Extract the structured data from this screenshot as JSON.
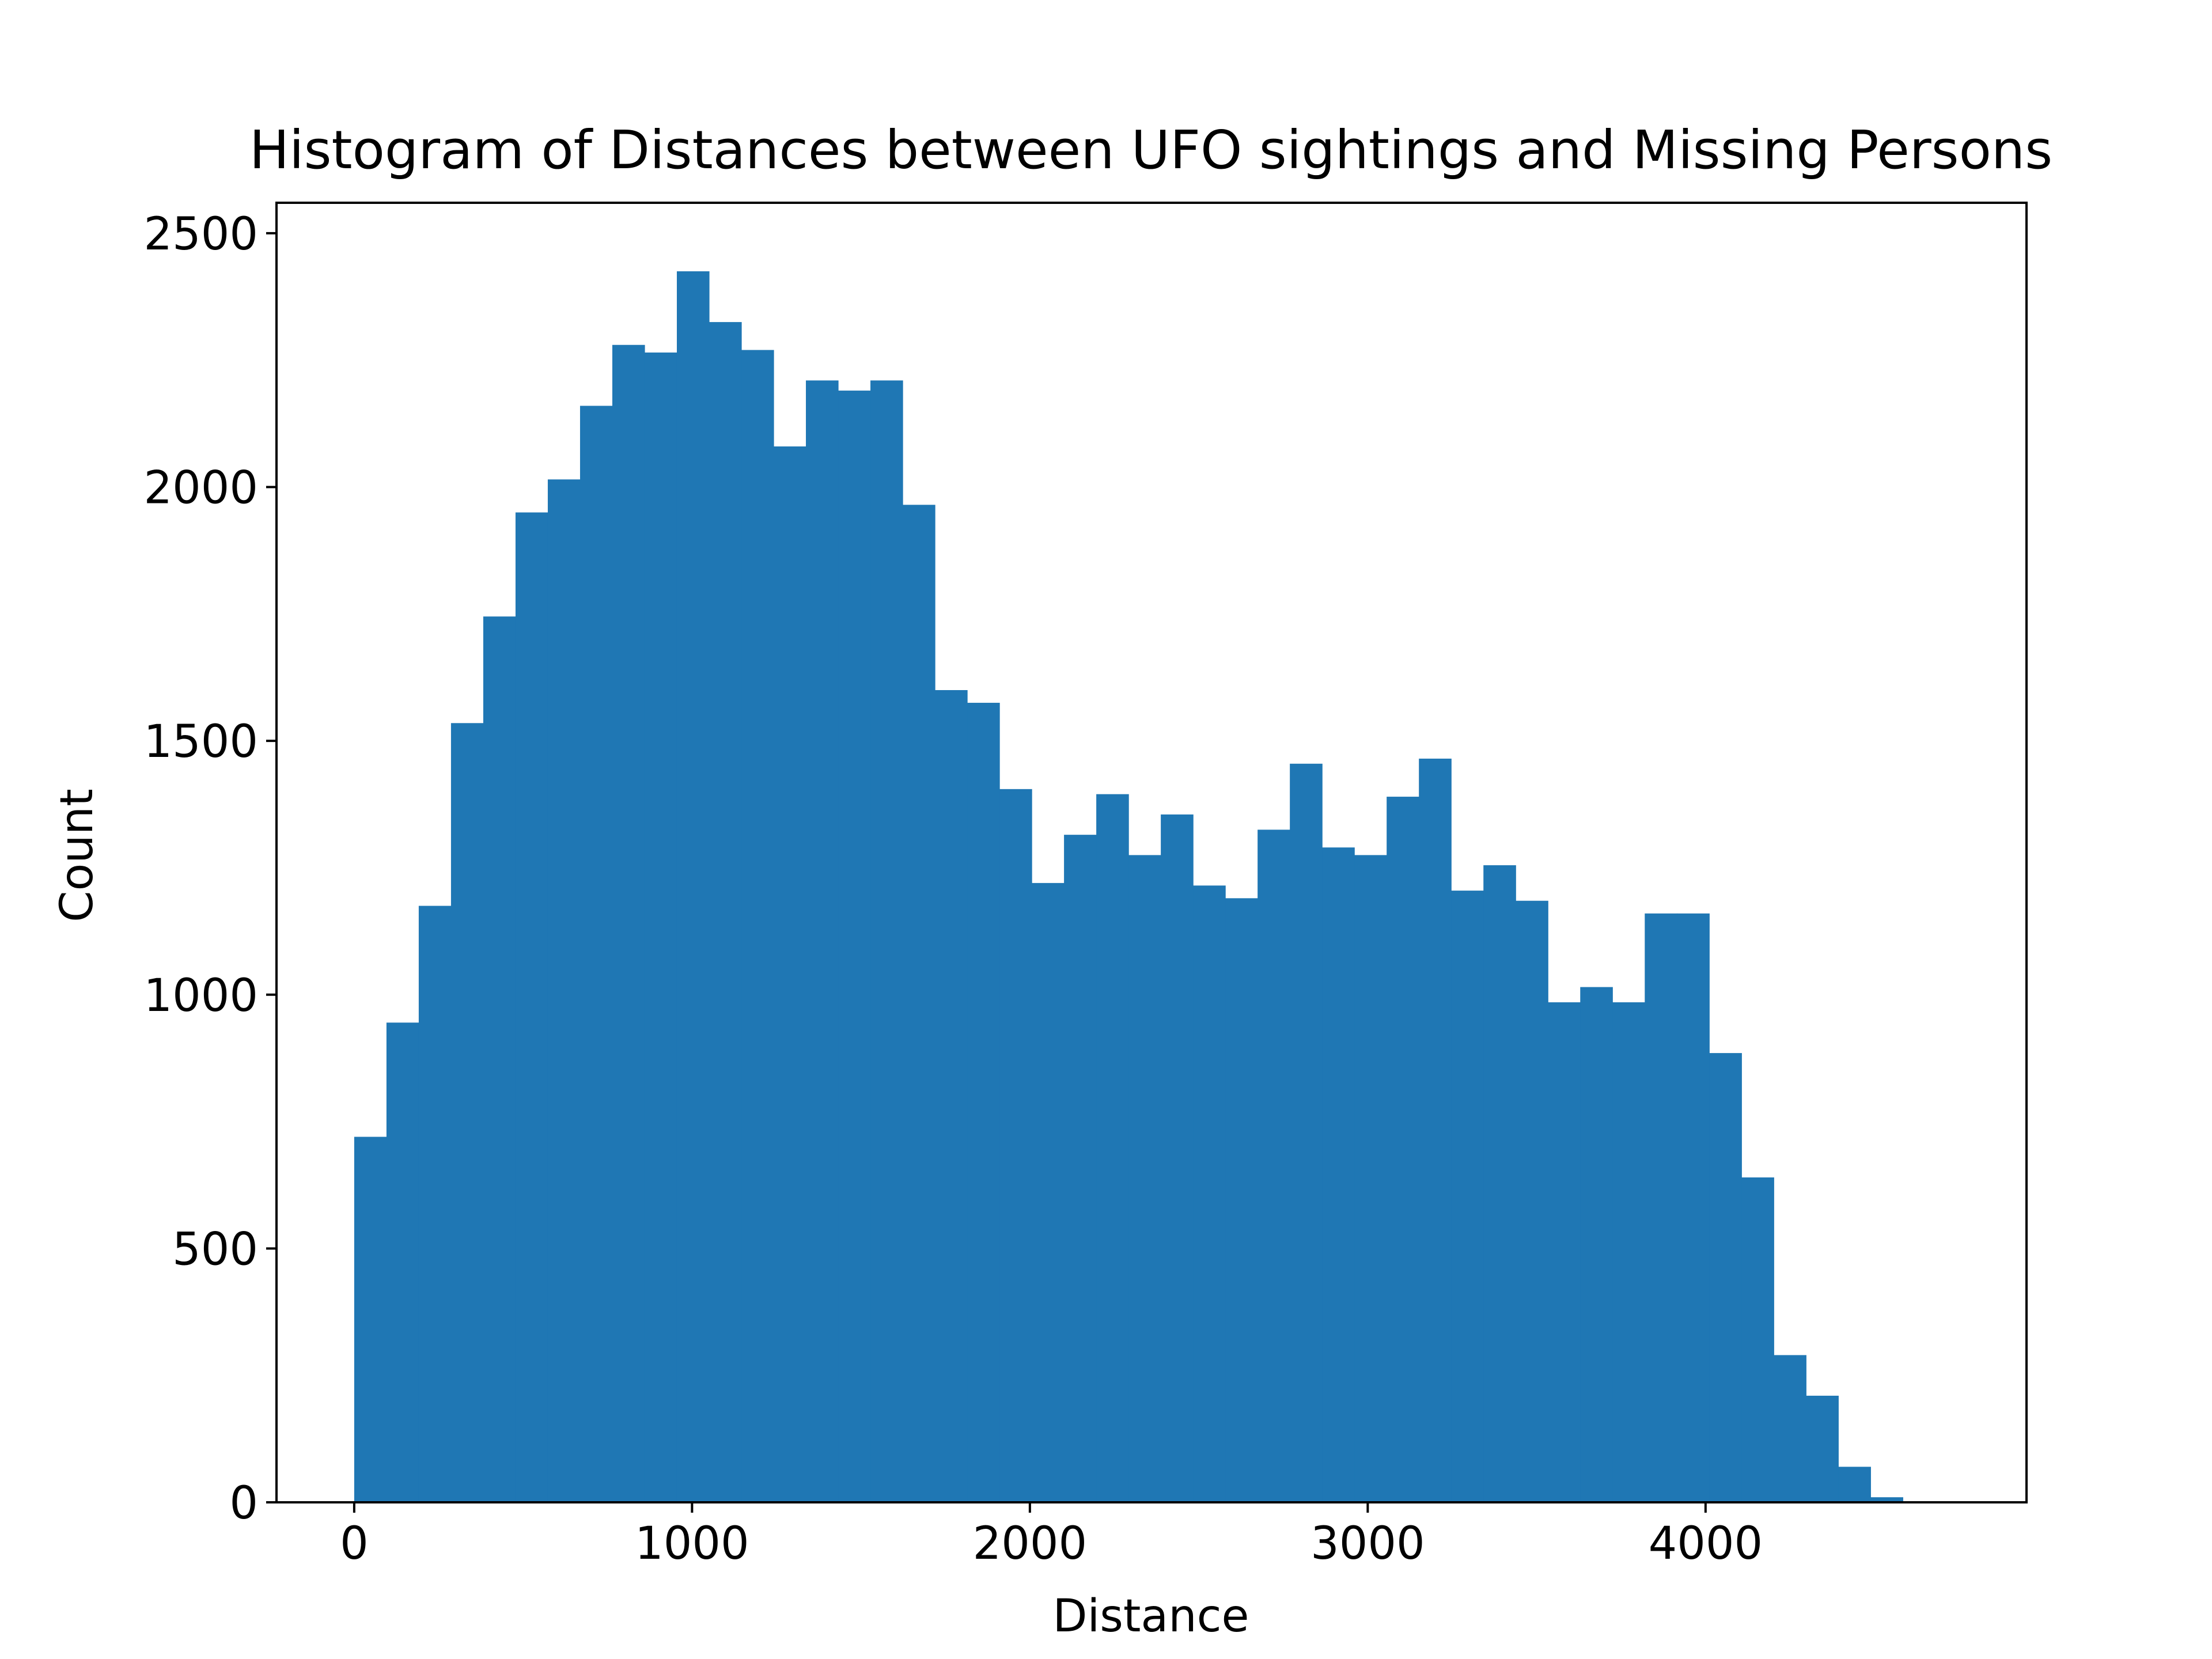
{
  "chart_data": {
    "type": "bar",
    "title": "Histogram of Distances between UFO sightings and Missing Persons",
    "xlabel": "Distance",
    "ylabel": "Count",
    "xlim": [
      -230,
      4950
    ],
    "ylim": [
      0,
      2560
    ],
    "x_ticks": [
      0,
      1000,
      2000,
      3000,
      4000
    ],
    "y_ticks": [
      0,
      500,
      1000,
      1500,
      2000,
      2500
    ],
    "x_tick_labels": [
      "0",
      "1000",
      "2000",
      "3000",
      "4000"
    ],
    "y_tick_labels": [
      "0",
      "500",
      "1000",
      "1500",
      "2000",
      "2500"
    ],
    "bar_color": "#1f77b4",
    "bin_start": 0,
    "bin_width": 95.5,
    "values": [
      720,
      945,
      1175,
      1535,
      1745,
      1950,
      2015,
      2160,
      2280,
      2265,
      2425,
      2325,
      2270,
      2080,
      2210,
      2190,
      2210,
      1965,
      1600,
      1575,
      1405,
      1220,
      1315,
      1395,
      1275,
      1355,
      1215,
      1190,
      1325,
      1455,
      1290,
      1275,
      1390,
      1465,
      1205,
      1255,
      1185,
      985,
      1015,
      985,
      1160,
      1160,
      885,
      640,
      290,
      210,
      70,
      10
    ]
  }
}
